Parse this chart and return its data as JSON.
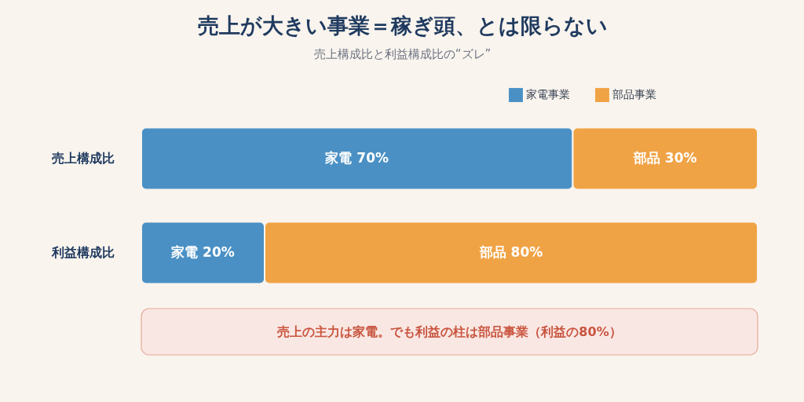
{
  "chart_data": {
    "type": "bar",
    "title": "売上が大きい事業＝稼ぎ頭、とは限らない",
    "subtitle": "売上構成比と利益構成比の“ズレ”",
    "categories": [
      "売上構成比",
      "利益構成比"
    ],
    "orientation": "horizontal",
    "stacked": true,
    "series": [
      {
        "name": "家電事業",
        "color": "#4a90c4",
        "values": [
          70,
          20
        ],
        "value_labels": [
          "家電 70%",
          "家電 20%"
        ]
      },
      {
        "name": "部品事業",
        "color": "#f0a345",
        "values": [
          30,
          80
        ],
        "value_labels": [
          "部品 30%",
          "部品 80%"
        ]
      }
    ],
    "legend": "top right",
    "tick_labels": "y",
    "annotations": [
      "売上の主力は家電。でも利益の柱は部品事業（利益の80%）"
    ]
  }
}
